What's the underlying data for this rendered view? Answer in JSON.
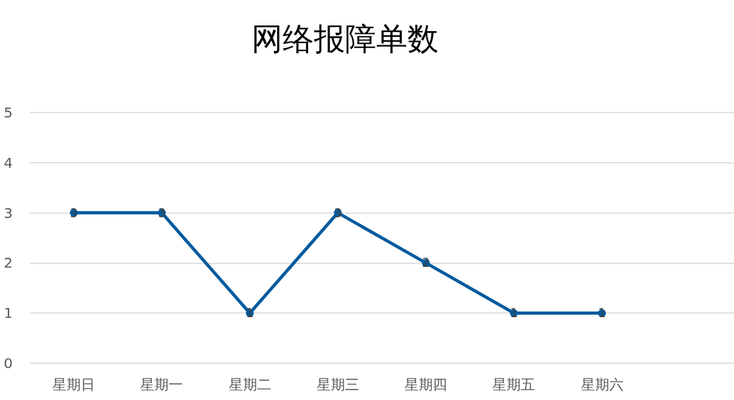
{
  "chart_data": {
    "type": "line",
    "title": "网络报障单数",
    "categories": [
      "星期日",
      "星期一",
      "星期二",
      "星期三",
      "星期四",
      "星期五",
      "星期六",
      null
    ],
    "values": [
      3,
      3,
      1,
      3,
      2,
      1,
      1,
      null
    ],
    "color": "#005a9e",
    "ylim": [
      0,
      5
    ],
    "yticks": [
      0,
      1,
      2,
      3,
      4,
      5
    ],
    "grid": "y",
    "marker": "circle",
    "data_labels": true
  }
}
